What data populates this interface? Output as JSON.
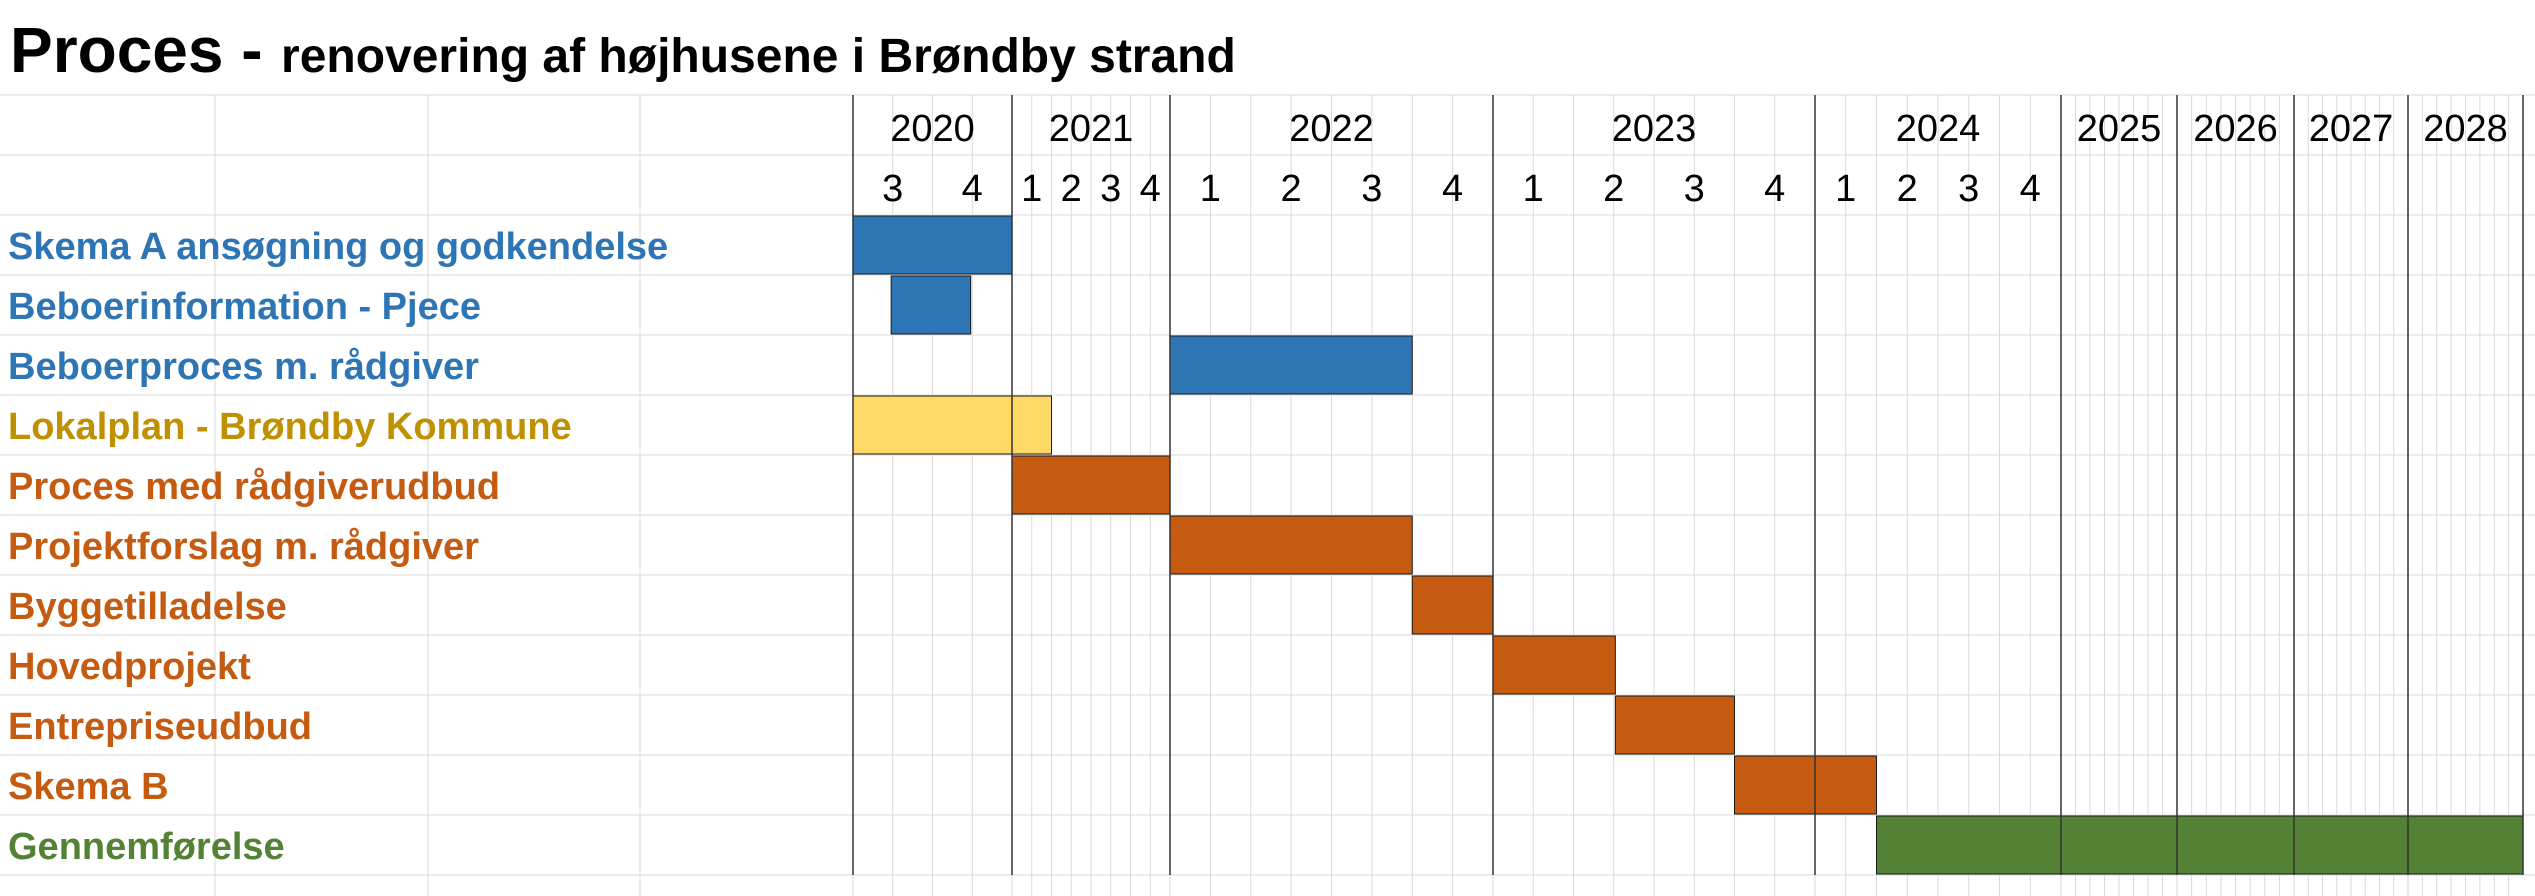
{
  "chart_data": {
    "type": "gantt",
    "title": "Proces -",
    "subtitle": "renovering af højhusene i Brøndby strand",
    "grid": true,
    "years": [
      {
        "label": "2020",
        "start": 2020.5,
        "end": 2021.0,
        "quarters": [
          {
            "label": "3",
            "pos": 2020.625
          },
          {
            "label": "4",
            "pos": 2020.875
          }
        ]
      },
      {
        "label": "2021",
        "start": 2021.0,
        "end": 2022.0,
        "quarters": [
          {
            "label": "1",
            "pos": 2021.125
          },
          {
            "label": "2",
            "pos": 2021.375
          },
          {
            "label": "3",
            "pos": 2021.625
          },
          {
            "label": "4",
            "pos": 2021.875
          }
        ]
      },
      {
        "label": "2022",
        "start": 2022.0,
        "end": 2023.0,
        "quarters": [
          {
            "label": "1",
            "pos": 2022.125
          },
          {
            "label": "2",
            "pos": 2022.375
          },
          {
            "label": "3",
            "pos": 2022.625
          },
          {
            "label": "4",
            "pos": 2022.875
          }
        ]
      },
      {
        "label": "2023",
        "start": 2023.0,
        "end": 2024.0,
        "quarters": [
          {
            "label": "1",
            "pos": 2023.125
          },
          {
            "label": "2",
            "pos": 2023.375
          },
          {
            "label": "3",
            "pos": 2023.625
          },
          {
            "label": "4",
            "pos": 2023.875
          }
        ]
      },
      {
        "label": "2024",
        "start": 2024.0,
        "end": 2025.0,
        "quarters": [
          {
            "label": "1",
            "pos": 2024.125
          },
          {
            "label": "2",
            "pos": 2024.375
          },
          {
            "label": "3",
            "pos": 2024.625
          },
          {
            "label": "4",
            "pos": 2024.875
          }
        ]
      },
      {
        "label": "2025",
        "start": 2025.0,
        "end": 2026.0,
        "quarters": []
      },
      {
        "label": "2026",
        "start": 2026.0,
        "end": 2027.0,
        "quarters": []
      },
      {
        "label": "2027",
        "start": 2027.0,
        "end": 2028.0,
        "quarters": []
      },
      {
        "label": "2028",
        "start": 2028.0,
        "end": 2029.0,
        "quarters": []
      }
    ],
    "tasks": [
      {
        "name": "Skema A ansøgning og godkendelse",
        "start": 2020.5,
        "end": 2021.0,
        "color": "#2E75B6"
      },
      {
        "name": "Beboerinformation - Pjece",
        "start": 2020.62,
        "end": 2020.87,
        "color": "#2E75B6"
      },
      {
        "name": "Beboerproces m. rådgiver",
        "start": 2022.0,
        "end": 2022.75,
        "color": "#2E75B6"
      },
      {
        "name": "Lokalplan - Brøndby Kommune",
        "start": 2020.5,
        "end": 2021.25,
        "color": "#FFD966",
        "label_color": "#BF9000"
      },
      {
        "name": "Proces med rådgiverudbud",
        "start": 2021.0,
        "end": 2022.0,
        "color": "#C55A11"
      },
      {
        "name": "Projektforslag m. rådgiver",
        "start": 2022.0,
        "end": 2022.75,
        "color": "#C55A11"
      },
      {
        "name": "Byggetilladelse",
        "start": 2022.75,
        "end": 2023.0,
        "color": "#C55A11"
      },
      {
        "name": "Hovedprojekt",
        "start": 2023.0,
        "end": 2023.38,
        "color": "#C55A11"
      },
      {
        "name": "Entrepriseudbud",
        "start": 2023.38,
        "end": 2023.75,
        "color": "#C55A11"
      },
      {
        "name": "Skema B",
        "start": 2023.75,
        "end": 2024.25,
        "color": "#C55A11"
      },
      {
        "name": "Gennemførelse",
        "start": 2024.25,
        "end": 2029.0,
        "color": "#548235"
      }
    ]
  }
}
